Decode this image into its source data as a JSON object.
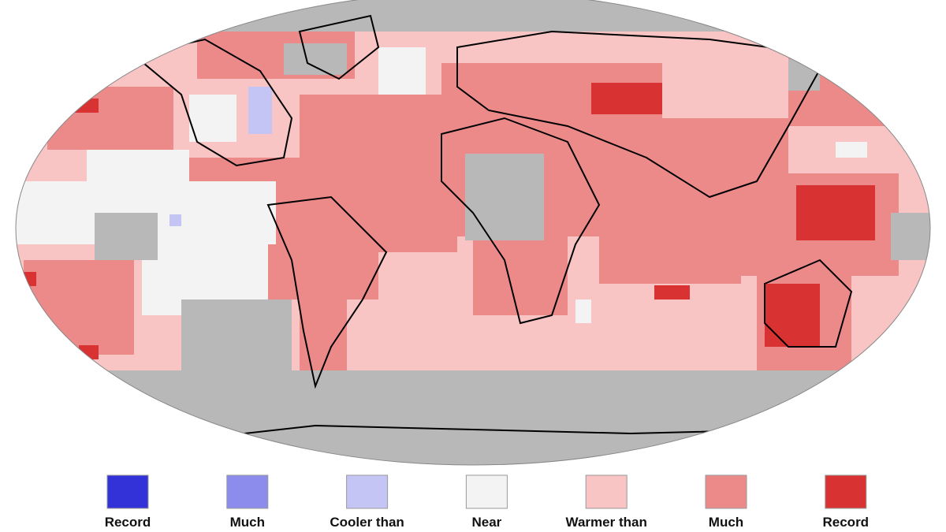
{
  "legend": {
    "items": [
      {
        "label": "Record",
        "color": "#3232d8"
      },
      {
        "label": "Much",
        "color": "#8c8ced"
      },
      {
        "label": "Cooler than",
        "color": "#c5c5f5"
      },
      {
        "label": "Near",
        "color": "#f3f3f3"
      },
      {
        "label": "Warmer than",
        "color": "#f8c4c4"
      },
      {
        "label": "Much",
        "color": "#ec8a8a"
      },
      {
        "label": "Record",
        "color": "#d83232"
      }
    ]
  }
}
